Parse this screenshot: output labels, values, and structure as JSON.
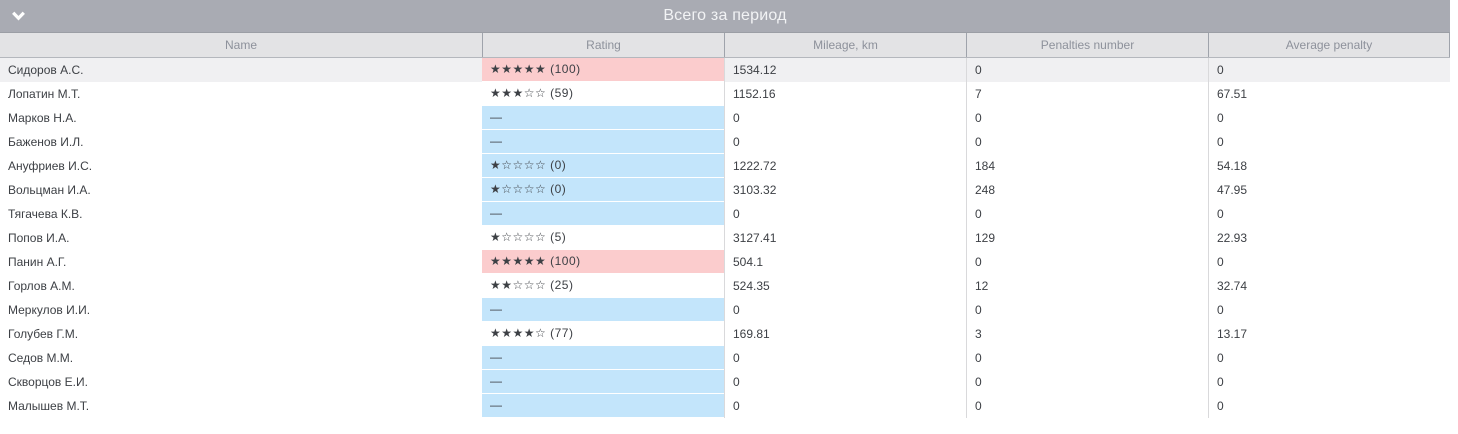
{
  "panel": {
    "title": "Всего за период",
    "collapse_icon": "chevron-down-icon"
  },
  "table": {
    "columns": [
      {
        "key": "name",
        "label": "Name"
      },
      {
        "key": "rating",
        "label": "Rating"
      },
      {
        "key": "mileage",
        "label": "Mileage, km"
      },
      {
        "key": "penalties",
        "label": "Penalties number"
      },
      {
        "key": "avg_penalty",
        "label": "Average penalty"
      }
    ],
    "rows": [
      {
        "name": "Сидоров А.С.",
        "rating": "★★★★★ (100)",
        "rating_bg": "pink",
        "mileage": "1534.12",
        "penalties": "0",
        "avg_penalty": "0",
        "highlighted": true
      },
      {
        "name": "Лопатин М.Т.",
        "rating": "★★★☆☆ (59)",
        "rating_bg": "white",
        "mileage": "1152.16",
        "penalties": "7",
        "avg_penalty": "67.51",
        "highlighted": false
      },
      {
        "name": "Марков Н.А.",
        "rating": "—",
        "rating_bg": "blue",
        "mileage": "0",
        "penalties": "0",
        "avg_penalty": "0",
        "highlighted": false
      },
      {
        "name": "Баженов И.Л.",
        "rating": "—",
        "rating_bg": "blue",
        "mileage": "0",
        "penalties": "0",
        "avg_penalty": "0",
        "highlighted": false
      },
      {
        "name": "Ануфриев И.С.",
        "rating": "★☆☆☆☆ (0)",
        "rating_bg": "blue",
        "mileage": "1222.72",
        "penalties": "184",
        "avg_penalty": "54.18",
        "highlighted": false
      },
      {
        "name": "Вольцман И.А.",
        "rating": "★☆☆☆☆ (0)",
        "rating_bg": "blue",
        "mileage": "3103.32",
        "penalties": "248",
        "avg_penalty": "47.95",
        "highlighted": false
      },
      {
        "name": "Тягачева К.В.",
        "rating": "—",
        "rating_bg": "blue",
        "mileage": "0",
        "penalties": "0",
        "avg_penalty": "0",
        "highlighted": false
      },
      {
        "name": "Попов И.А.",
        "rating": "★☆☆☆☆ (5)",
        "rating_bg": "white",
        "mileage": "3127.41",
        "penalties": "129",
        "avg_penalty": "22.93",
        "highlighted": false
      },
      {
        "name": "Панин А.Г.",
        "rating": "★★★★★ (100)",
        "rating_bg": "pink",
        "mileage": "504.1",
        "penalties": "0",
        "avg_penalty": "0",
        "highlighted": false
      },
      {
        "name": "Горлов А.М.",
        "rating": "★★☆☆☆ (25)",
        "rating_bg": "white",
        "mileage": "524.35",
        "penalties": "12",
        "avg_penalty": "32.74",
        "highlighted": false
      },
      {
        "name": "Меркулов И.И.",
        "rating": "—",
        "rating_bg": "blue",
        "mileage": "0",
        "penalties": "0",
        "avg_penalty": "0",
        "highlighted": false
      },
      {
        "name": "Голубев Г.М.",
        "rating": "★★★★☆ (77)",
        "rating_bg": "white",
        "mileage": "169.81",
        "penalties": "3",
        "avg_penalty": "13.17",
        "highlighted": false
      },
      {
        "name": "Седов М.М.",
        "rating": "—",
        "rating_bg": "blue",
        "mileage": "0",
        "penalties": "0",
        "avg_penalty": "0",
        "highlighted": false
      },
      {
        "name": "Скворцов Е.И.",
        "rating": "—",
        "rating_bg": "blue",
        "mileage": "0",
        "penalties": "0",
        "avg_penalty": "0",
        "highlighted": false
      },
      {
        "name": "Малышев М.Т.",
        "rating": "—",
        "rating_bg": "blue",
        "mileage": "0",
        "penalties": "0",
        "avg_penalty": "0",
        "highlighted": false
      }
    ]
  },
  "colors": {
    "bar_bg": "#a9abb3",
    "rating_high_bg": "#fbcccd",
    "rating_none_bg": "#c3e5fb",
    "highlight_row_bg": "#f0f0f2"
  }
}
